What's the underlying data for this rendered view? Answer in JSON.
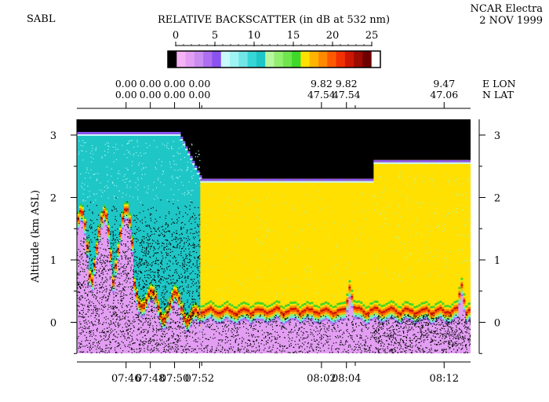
{
  "chart_data": {
    "type": "heatmap",
    "instrument": "SABL",
    "aircraft": "NCAR Electra",
    "date": "2 NOV 1999",
    "title": "RELATIVE BACKSCATTER (in dB at 532 nm)",
    "colorbar": {
      "ticks": [
        "0",
        "5",
        "10",
        "15",
        "20",
        "25"
      ],
      "range": [
        0,
        25
      ],
      "colors": [
        "#000000",
        "#f6b2f6",
        "#e39ef3",
        "#c98cf0",
        "#ad6ef0",
        "#8a52ef",
        "#c8fafa",
        "#a0f3f3",
        "#72e6e6",
        "#37d6d6",
        "#1fc6c6",
        "#b8f7a0",
        "#93ef6f",
        "#6fe64e",
        "#3ed92a",
        "#ffe000",
        "#ffb400",
        "#ff8a00",
        "#ff5a00",
        "#f23000",
        "#cc1600",
        "#9c0a00",
        "#6e0000",
        "#ffffff"
      ]
    },
    "ylabel": "Altitude (km ASL)",
    "ylim": [
      -0.5,
      3.25
    ],
    "yticks": [
      "3",
      "2",
      "1",
      "0"
    ],
    "xlim": [
      7.7,
      8.236
    ],
    "xticks": [
      {
        "x": 7.767,
        "label": "07:46"
      },
      {
        "x": 7.8,
        "label": "07:48"
      },
      {
        "x": 7.833,
        "label": "07:50"
      },
      {
        "x": 7.867,
        "label": "07:52"
      },
      {
        "x": 8.033,
        "label": "08:02"
      },
      {
        "x": 8.067,
        "label": "08:04"
      },
      {
        "x": 8.2,
        "label": "08:12"
      }
    ],
    "position_axis": {
      "row_labels": [
        "E LON",
        "N LAT"
      ],
      "entries": [
        {
          "x": 7.767,
          "lon": "0.00",
          "lat": "0.00"
        },
        {
          "x": 7.8,
          "lon": "0.00",
          "lat": "0.00"
        },
        {
          "x": 7.833,
          "lon": "0.00",
          "lat": "0.00"
        },
        {
          "x": 7.867,
          "lon": "0.00",
          "lat": "0.00"
        },
        {
          "x": 8.033,
          "lon": "9.82",
          "lat": "47.54"
        },
        {
          "x": 8.067,
          "lon": "9.82",
          "lat": "47.54"
        },
        {
          "x": 8.2,
          "lon": "9.47",
          "lat": "47.06"
        }
      ]
    },
    "segments": [
      {
        "t0": 7.7,
        "t1": 7.868,
        "flight_altitude_km": 3.05,
        "aloft_dB": 11,
        "boundary_layer_top_km": 1.2,
        "boundary_layer_dB": 22
      },
      {
        "t0": 7.868,
        "t1": 8.104,
        "flight_altitude_km": 2.3,
        "aloft_dB": 16,
        "boundary_layer_top_km": 0.3,
        "boundary_layer_dB": 22
      },
      {
        "t0": 8.104,
        "t1": 8.236,
        "flight_altitude_km": 2.6,
        "aloft_dB": 16,
        "boundary_layer_top_km": 0.3,
        "boundary_layer_dB": 22
      }
    ]
  }
}
